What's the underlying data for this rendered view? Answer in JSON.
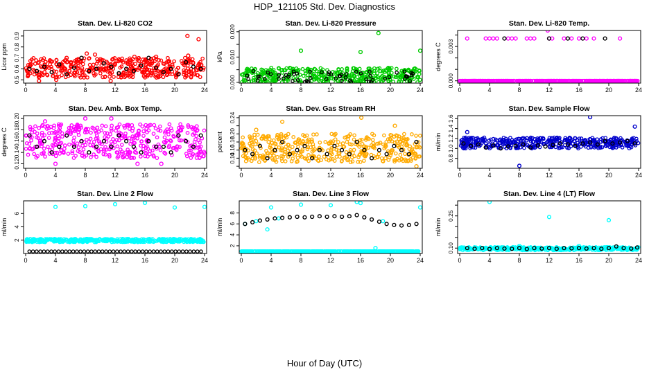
{
  "title": "HDP_121105  Std. Dev. Diagnostics",
  "xlabel": "Hour of Day (UTC)",
  "chart_data": [
    {
      "type": "scatter",
      "title": "Stan. Dev. Li-820 CO2",
      "ylabel": "Licor ppm",
      "xlim": [
        0,
        24
      ],
      "ylim": [
        0.47,
        0.95
      ],
      "xticks": [
        0,
        4,
        8,
        12,
        16,
        20,
        24
      ],
      "yticks": [
        0.5,
        0.6,
        0.7,
        0.8,
        0.9
      ],
      "ytick_labels": [
        "0.5",
        "0.6",
        "0.7",
        "0.8",
        "0.9"
      ],
      "series": [
        {
          "color": "#ff0000",
          "band": [
            0.52,
            0.7
          ],
          "x": [
            4.1,
            9.3,
            14.6,
            21.7,
            23.2,
            21.8,
            8.2,
            17.5,
            5.5,
            1.8,
            11.4
          ],
          "y": [
            0.5,
            0.73,
            0.71,
            0.9,
            0.87,
            0.72,
            0.74,
            0.71,
            0.7,
            0.49,
            0.49
          ]
        },
        {
          "color": "#000000",
          "band": [
            0.53,
            0.68
          ],
          "x": [
            0.5,
            1.5,
            2.5,
            3.5,
            4.5,
            5.5,
            6.5,
            7.5,
            8.5,
            9.5,
            10.5,
            11.5,
            12.5,
            13.5,
            14.5,
            15.5,
            16.5,
            17.5,
            18.5,
            19.5,
            20.5,
            21.5,
            22.5,
            23.5
          ],
          "y": [
            0.6,
            0.58,
            0.62,
            0.57,
            0.64,
            0.55,
            0.61,
            0.7,
            0.58,
            0.6,
            0.65,
            0.62,
            0.56,
            0.6,
            0.58,
            0.63,
            0.7,
            0.61,
            0.57,
            0.6,
            0.55,
            0.66,
            0.62,
            0.6
          ]
        }
      ]
    },
    {
      "type": "scatter",
      "title": "Stan. Dev. Li-820 Pressure",
      "ylabel": "kPa",
      "xlim": [
        0,
        24
      ],
      "ylim": [
        -0.0003,
        0.0205
      ],
      "xticks": [
        0,
        4,
        8,
        12,
        16,
        20,
        24
      ],
      "yticks": [
        0.0,
        0.005,
        0.01,
        0.015,
        0.02
      ],
      "ytick_labels": [
        "0.000",
        "",
        "0.010",
        "",
        "0.020"
      ],
      "series": [
        {
          "color": "#00cc00",
          "band": [
            0.0,
            0.0058
          ],
          "x": [
            8.0,
            16.0,
            18.4,
            24.0
          ],
          "y": [
            0.0125,
            0.012,
            0.0195,
            0.0125
          ]
        },
        {
          "color": "#000000",
          "band": [
            0.0,
            0.0045
          ],
          "x": [],
          "y": []
        }
      ]
    },
    {
      "type": "scatter",
      "title": "Stan. Dev. Li-820 Temp.",
      "ylabel": "degrees C",
      "xlim": [
        0,
        24
      ],
      "ylim": [
        -0.0002,
        0.0044
      ],
      "xticks": [
        0,
        4,
        8,
        12,
        16,
        20,
        24
      ],
      "yticks": [
        0.0,
        0.001,
        0.002,
        0.003,
        0.004
      ],
      "ytick_labels": [
        "0.000",
        "",
        "",
        "0.003",
        ""
      ],
      "series": [
        {
          "color": "#ff00ff",
          "band": [
            0.0,
            0.0
          ],
          "x": [
            1.0,
            3.5,
            4.0,
            4.5,
            5.0,
            6.5,
            7.0,
            7.5,
            9.0,
            9.5,
            10.0,
            11.8,
            12.0,
            12.4,
            14.0,
            15.0,
            16.0,
            17.0,
            18.0,
            21.5
          ],
          "y": [
            0.0037,
            0.0037,
            0.0037,
            0.0037,
            0.0037,
            0.0037,
            0.0037,
            0.0037,
            0.0037,
            0.0037,
            0.0037,
            0.0044,
            0.0037,
            0.0037,
            0.0037,
            0.0037,
            0.0037,
            0.0037,
            0.0037,
            0.0037
          ]
        },
        {
          "color": "#000000",
          "band": [
            0.0,
            0.0
          ],
          "x": [
            6.0,
            12.0,
            14.5,
            16.5,
            19.5
          ],
          "y": [
            0.0037,
            0.0037,
            0.0037,
            0.0037,
            0.0037
          ]
        }
      ]
    },
    {
      "type": "scatter",
      "title": "Stan. Dev. Amb. Box Temp.",
      "ylabel": "degrees C",
      "xlim": [
        0,
        24
      ],
      "ylim": [
        0.112,
        0.205
      ],
      "xticks": [
        0,
        4,
        8,
        12,
        16,
        20,
        24
      ],
      "yticks": [
        0.12,
        0.14,
        0.16,
        0.18,
        0.2
      ],
      "ytick_labels": [
        "0.12",
        "0.14",
        "0.16",
        "0.18",
        "0.20"
      ],
      "series": [
        {
          "color": "#ff00ff",
          "band": [
            0.13,
            0.19
          ],
          "x": [
            8.0,
            4.0,
            15.0,
            18.2,
            11.5,
            2.6
          ],
          "y": [
            0.2,
            0.12,
            0.12,
            0.12,
            0.2,
            0.195
          ]
        },
        {
          "color": "#000000",
          "band": [
            0.135,
            0.185
          ],
          "x": [
            0.5,
            1.5,
            2.5,
            3.5,
            4.5,
            5.5,
            6.5,
            7.5,
            8.5,
            9.5,
            10.5,
            11.5,
            12.5,
            13.5,
            14.5,
            15.5,
            16.5,
            17.5,
            18.5,
            19.5,
            20.5,
            21.5,
            22.5,
            23.5
          ],
          "y": [
            0.17,
            0.15,
            0.16,
            0.14,
            0.15,
            0.17,
            0.15,
            0.16,
            0.14,
            0.15,
            0.16,
            0.15,
            0.17,
            0.16,
            0.15,
            0.14,
            0.16,
            0.15,
            0.15,
            0.14,
            0.17,
            0.16,
            0.15,
            0.17
          ]
        }
      ]
    },
    {
      "type": "scatter",
      "title": "Stan. Dev. Gas Stream RH",
      "ylabel": "percent",
      "xlim": [
        0,
        24
      ],
      "ylim": [
        0.115,
        0.245
      ],
      "xticks": [
        0,
        4,
        8,
        12,
        16,
        20,
        24
      ],
      "yticks": [
        0.12,
        0.14,
        0.16,
        0.18,
        0.2,
        0.22,
        0.24
      ],
      "ytick_labels": [
        "",
        "0.14",
        "0.16",
        "0.18",
        "0.20",
        "",
        "0.24"
      ],
      "series": [
        {
          "color": "#ffaa00",
          "band": [
            0.13,
            0.2
          ],
          "x": [
            5.5,
            16.1,
            20.6,
            23.5,
            2.0
          ],
          "y": [
            0.23,
            0.24,
            0.22,
            0.12,
            0.21
          ]
        },
        {
          "color": "#000000",
          "band": [
            0.14,
            0.19
          ],
          "x": [
            0.5,
            1.5,
            2.5,
            3.5,
            4.5,
            5.5,
            6.5,
            7.5,
            8.5,
            9.5,
            10.5,
            11.5,
            12.5,
            13.5,
            14.5,
            15.5,
            16.5,
            17.5,
            18.5,
            19.5,
            20.5,
            21.5,
            22.5,
            23.5
          ],
          "y": [
            0.16,
            0.15,
            0.17,
            0.14,
            0.16,
            0.18,
            0.15,
            0.16,
            0.17,
            0.14,
            0.16,
            0.15,
            0.17,
            0.16,
            0.15,
            0.18,
            0.16,
            0.14,
            0.16,
            0.15,
            0.17,
            0.16,
            0.15,
            0.18
          ]
        }
      ]
    },
    {
      "type": "scatter",
      "title": "Stan. Dev. Sample Flow",
      "ylabel": "ml/min",
      "xlim": [
        0,
        24
      ],
      "ylim": [
        0.6,
        1.66
      ],
      "xticks": [
        0,
        4,
        8,
        12,
        16,
        20,
        24
      ],
      "yticks": [
        0.8,
        1.0,
        1.2,
        1.4,
        1.6
      ],
      "ytick_labels": [
        "0.8",
        "1.0",
        "1.2",
        "1.4",
        "1.6"
      ],
      "series": [
        {
          "color": "#0000cc",
          "band": [
            1.0,
            1.22
          ],
          "x": [
            8.0,
            17.5,
            23.5,
            1.0
          ],
          "y": [
            0.65,
            1.63,
            1.44,
            1.33
          ]
        },
        {
          "color": "#000000",
          "band": [
            1.0,
            1.16
          ],
          "x": [
            0.5,
            1.5,
            2.5,
            3.5,
            4.5,
            5.5,
            6.5,
            7.5,
            8.5,
            9.5,
            10.5,
            11.5,
            12.5,
            13.5,
            14.5,
            15.5,
            16.5,
            17.5,
            18.5,
            19.5,
            20.5,
            21.5,
            22.5,
            23.5
          ],
          "y": [
            1.1,
            1.05,
            1.08,
            1.02,
            1.06,
            1.0,
            1.04,
            1.05,
            1.08,
            1.02,
            1.06,
            1.04,
            1.07,
            1.1,
            1.08,
            1.05,
            1.1,
            1.12,
            1.08,
            1.15,
            1.1,
            1.12,
            1.15,
            1.1
          ]
        }
      ]
    },
    {
      "type": "scatter",
      "title": "Stan. Dev. Line 2 Flow",
      "ylabel": "ml/min",
      "xlim": [
        0,
        24
      ],
      "ylim": [
        0.0,
        7.9
      ],
      "xticks": [
        0,
        4,
        8,
        12,
        16,
        20,
        24
      ],
      "yticks": [
        2,
        4,
        6
      ],
      "ytick_labels": [
        "2",
        "4",
        "6"
      ],
      "series": [
        {
          "color": "#00ffff",
          "band": [
            1.7,
            2.2
          ],
          "x": [
            4.0,
            8.0,
            12.0,
            16.0,
            20.0,
            24.0
          ],
          "y": [
            7.0,
            7.1,
            7.4,
            7.6,
            6.9,
            7.0
          ]
        },
        {
          "color": "#000000",
          "band": [
            0.3,
            0.3
          ],
          "x": [],
          "y": []
        }
      ]
    },
    {
      "type": "scatter",
      "title": "Stan. Dev. Line 3 Flow",
      "ylabel": "ml/min",
      "xlim": [
        0,
        24
      ],
      "ylim": [
        0.6,
        10.2
      ],
      "xticks": [
        0,
        4,
        8,
        12,
        16,
        20,
        24
      ],
      "yticks": [
        2,
        4,
        6,
        8
      ],
      "ytick_labels": [
        "2",
        "4",
        "6",
        "8"
      ],
      "series": [
        {
          "color": "#00ffff",
          "band": [
            1.0,
            1.0
          ],
          "x": [
            0.5,
            2.0,
            4.0,
            5.0,
            8.0,
            12.0,
            15.5,
            16.0,
            18.0,
            19.0,
            24.0,
            3.5
          ],
          "y": [
            6.0,
            6.5,
            9.0,
            7.0,
            9.5,
            9.4,
            10.0,
            9.8,
            1.6,
            6.5,
            9.0,
            5.0
          ]
        },
        {
          "color": "#000000",
          "band": [
            0,
            0
          ],
          "x": [
            0.5,
            1.5,
            2.5,
            3.5,
            4.5,
            5.5,
            6.5,
            7.5,
            8.5,
            9.5,
            10.5,
            11.5,
            12.5,
            13.5,
            14.5,
            15.5,
            16.5,
            17.5,
            18.5,
            19.5,
            20.5,
            21.5,
            22.5,
            23.5
          ],
          "y": [
            6.0,
            6.3,
            6.6,
            6.8,
            7.0,
            7.1,
            7.2,
            7.3,
            7.2,
            7.3,
            7.4,
            7.3,
            7.4,
            7.3,
            7.4,
            7.6,
            7.2,
            6.8,
            6.4,
            6.0,
            5.8,
            5.7,
            5.8,
            6.0
          ]
        }
      ]
    },
    {
      "type": "scatter",
      "title": "Stan. Dev. Line 4 (LT) Flow",
      "ylabel": "ml/min",
      "xlim": [
        0,
        24
      ],
      "ylim": [
        0.075,
        0.32
      ],
      "xticks": [
        0,
        4,
        8,
        12,
        16,
        20,
        24
      ],
      "yticks": [
        0.1,
        0.15,
        0.2,
        0.25,
        0.3
      ],
      "ytick_labels": [
        "0.10",
        "",
        "",
        "0.25",
        ""
      ],
      "series": [
        {
          "color": "#00ffff",
          "band": [
            0.09,
            0.105
          ],
          "x": [
            4.0,
            12.0,
            20.0,
            8.0,
            16.0
          ],
          "y": [
            0.315,
            0.245,
            0.23,
            0.11,
            0.11
          ]
        },
        {
          "color": "#000000",
          "band": [
            0.095,
            0.105
          ],
          "x": [
            1.0,
            2.0,
            3.0,
            4.0,
            5.0,
            6.0,
            7.0,
            8.0,
            9.0,
            10.0,
            11.0,
            12.0,
            13.0,
            14.0,
            15.0,
            16.0,
            17.0,
            18.0,
            19.0,
            20.0,
            21.0,
            22.0,
            23.0,
            23.8
          ],
          "y": [
            0.1,
            0.097,
            0.1,
            0.096,
            0.1,
            0.098,
            0.097,
            0.1,
            0.096,
            0.1,
            0.098,
            0.1,
            0.097,
            0.1,
            0.099,
            0.1,
            0.098,
            0.1,
            0.097,
            0.1,
            0.108,
            0.1,
            0.098,
            0.103
          ]
        }
      ]
    }
  ]
}
